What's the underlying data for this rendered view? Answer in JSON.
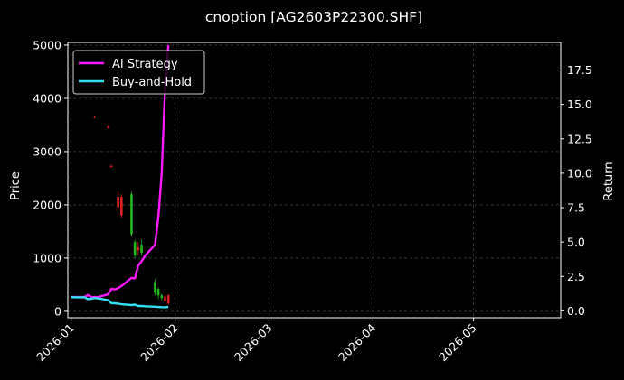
{
  "chart_data": {
    "type": "line",
    "title": "cnoption [AG2603P22300.SHF]",
    "ylabel": "Price",
    "y2label": "Return",
    "x_ticks": [
      "2026-01",
      "2026-02",
      "2026-03",
      "2026-04",
      "2026-05"
    ],
    "xlim": [
      "2025-12-31",
      "2026-05-27"
    ],
    "ylim": [
      -120,
      5050
    ],
    "y_ticks": [
      "0",
      "1000",
      "2000",
      "3000",
      "4000",
      "5000"
    ],
    "y2lim": [
      -0.5,
      19.5
    ],
    "y2_ticks": [
      "0.0",
      "2.5",
      "5.0",
      "7.5",
      "10.0",
      "12.5",
      "15.0",
      "17.5"
    ],
    "grid": true,
    "legend_position": "top-left",
    "colors": {
      "background": "#000000",
      "ai_strategy": "#ff1aff",
      "buy_and_hold": "#33e0f0",
      "candle_up": "#22b822",
      "candle_down": "#e02020",
      "grid": "#555555"
    },
    "series": [
      {
        "name": "AI Strategy",
        "axis": "right",
        "x": [
          "2026-01-01",
          "2026-01-02",
          "2026-01-05",
          "2026-01-06",
          "2026-01-07",
          "2026-01-08",
          "2026-01-09",
          "2026-01-12",
          "2026-01-13",
          "2026-01-14",
          "2026-01-15",
          "2026-01-16",
          "2026-01-19",
          "2026-01-20",
          "2026-01-21",
          "2026-01-22",
          "2026-01-23",
          "2026-01-26",
          "2026-01-27",
          "2026-01-28",
          "2026-01-29",
          "2026-01-30"
        ],
        "values": [
          1.0,
          1.0,
          1.0,
          1.15,
          1.0,
          1.0,
          1.0,
          1.2,
          1.6,
          1.55,
          1.65,
          1.8,
          2.4,
          2.35,
          3.3,
          3.6,
          4.0,
          4.8,
          6.8,
          10.0,
          16.2,
          19.3
        ]
      },
      {
        "name": "Buy-and-Hold",
        "axis": "right",
        "x": [
          "2026-01-01",
          "2026-01-02",
          "2026-01-05",
          "2026-01-06",
          "2026-01-07",
          "2026-01-08",
          "2026-01-09",
          "2026-01-12",
          "2026-01-13",
          "2026-01-14",
          "2026-01-15",
          "2026-01-16",
          "2026-01-19",
          "2026-01-20",
          "2026-01-21",
          "2026-01-22",
          "2026-01-23",
          "2026-01-26",
          "2026-01-27",
          "2026-01-28",
          "2026-01-29",
          "2026-01-30"
        ],
        "values": [
          1.0,
          0.98,
          0.98,
          0.85,
          0.88,
          0.93,
          0.9,
          0.78,
          0.55,
          0.55,
          0.52,
          0.48,
          0.42,
          0.45,
          0.35,
          0.35,
          0.33,
          0.3,
          0.28,
          0.27,
          0.26,
          0.28
        ]
      }
    ],
    "candles": [
      {
        "x": "2026-01-08",
        "open": 3650,
        "high": 3680,
        "low": 3630,
        "close": 3640
      },
      {
        "x": "2026-01-12",
        "open": 3460,
        "high": 3480,
        "low": 3440,
        "close": 3450
      },
      {
        "x": "2026-01-13",
        "open": 2730,
        "high": 2760,
        "low": 2700,
        "close": 2720
      },
      {
        "x": "2026-01-15",
        "open": 2150,
        "high": 2250,
        "low": 1880,
        "close": 1950
      },
      {
        "x": "2026-01-16",
        "open": 2150,
        "high": 2200,
        "low": 1750,
        "close": 1800
      },
      {
        "x": "2026-01-19",
        "open": 1450,
        "high": 2250,
        "low": 1400,
        "close": 2200
      },
      {
        "x": "2026-01-20",
        "open": 1050,
        "high": 1350,
        "low": 1000,
        "close": 1300
      },
      {
        "x": "2026-01-21",
        "open": 1200,
        "high": 1300,
        "low": 1050,
        "close": 1150
      },
      {
        "x": "2026-01-22",
        "open": 1100,
        "high": 1350,
        "low": 1050,
        "close": 1250
      },
      {
        "x": "2026-01-26",
        "open": 350,
        "high": 600,
        "low": 300,
        "close": 550
      },
      {
        "x": "2026-01-27",
        "open": 300,
        "high": 450,
        "low": 230,
        "close": 420
      },
      {
        "x": "2026-01-28",
        "open": 250,
        "high": 330,
        "low": 200,
        "close": 300
      },
      {
        "x": "2026-01-29",
        "open": 280,
        "high": 320,
        "low": 170,
        "close": 200
      },
      {
        "x": "2026-01-30",
        "open": 300,
        "high": 320,
        "low": 120,
        "close": 150
      }
    ]
  }
}
